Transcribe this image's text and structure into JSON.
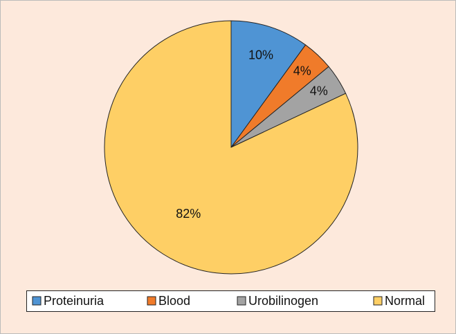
{
  "chart_data": {
    "type": "pie",
    "categories": [
      "Proteinuria",
      "Blood",
      "Urobilinogen",
      "Normal"
    ],
    "values": [
      10,
      4,
      4,
      82
    ],
    "value_labels": [
      "10%",
      "4%",
      "4%",
      "82%"
    ],
    "colors": [
      "#4f94d4",
      "#f07b2a",
      "#a3a3a3",
      "#fecf65"
    ],
    "legend": "bottom"
  }
}
